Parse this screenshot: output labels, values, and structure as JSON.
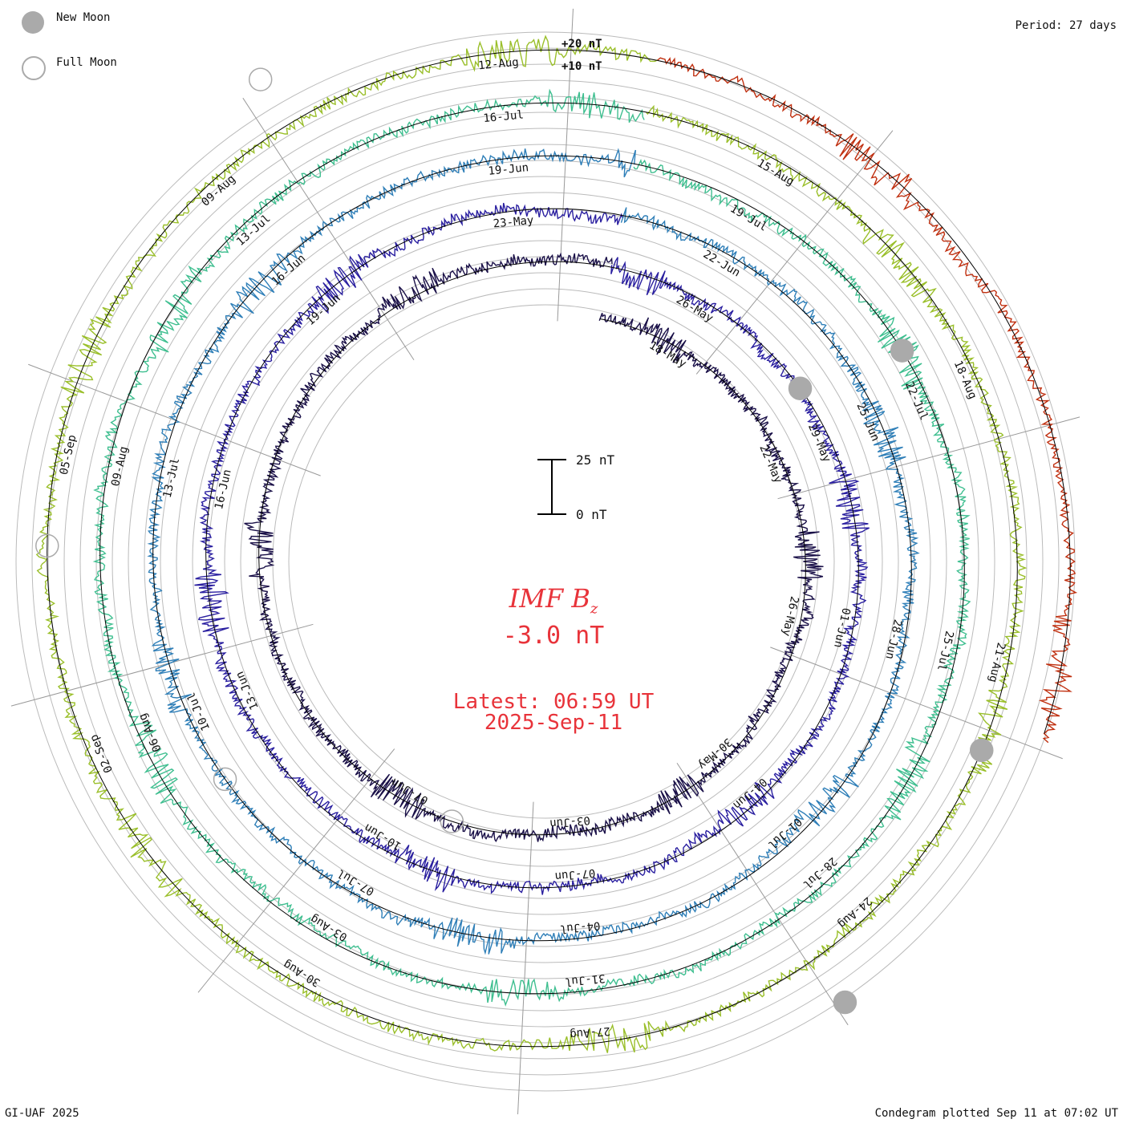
{
  "legend": {
    "new_moon": {
      "label": "New Moon",
      "color": "#aaaaaa"
    },
    "full_moon": {
      "label": "Full Moon",
      "color": "#aaaaaa"
    }
  },
  "period_label": "Period: 27 days",
  "footer": {
    "left": "GI-UAF 2025",
    "right": "Condegram plotted Sep 11 at 07:02 UT"
  },
  "scale": {
    "top_label": "+20 nT",
    "second_label": "+10 nT",
    "bar_top": "25 nT",
    "bar_bottom": "0 nT"
  },
  "center": {
    "title_main": "IMF B",
    "title_sub": "z",
    "value": "-3.0 nT",
    "latest": "Latest: 06:59 UT",
    "date": "2025-Sep-11"
  },
  "chart_data": {
    "type": "line",
    "title": "IMF Bz Condegram",
    "period_days": 27,
    "units": "nT",
    "ring_spacing_nT": 10,
    "latest_value": -3.0,
    "rotations": [
      {
        "name": "rotation-1",
        "start": "15-May",
        "color": "#1a1048",
        "date_labels": [
          "18-May",
          "22-May",
          "26-May",
          "30-May",
          "03-Jun",
          "07-Jun"
        ]
      },
      {
        "name": "rotation-2",
        "start": "26-May",
        "color": "#2a1fa0",
        "date_labels": [
          "26-May",
          "29-May",
          "01-Jun",
          "04-Jun",
          "07-Jun",
          "10-Jun",
          "13-Jun",
          "16-Jun",
          "19-Jun",
          "23-May"
        ]
      },
      {
        "name": "rotation-3",
        "start": "22-Jun",
        "color": "#2f7fb8",
        "date_labels": [
          "22-Jun",
          "25-Jun",
          "28-Jun",
          "01-Jul",
          "04-Jul",
          "07-Jul",
          "10-Jul",
          "13-Jul",
          "16-Jun",
          "19-Jun"
        ]
      },
      {
        "name": "rotation-4",
        "start": "19-Jul",
        "color": "#3fbf90",
        "date_labels": [
          "19-Jul",
          "22-Jul",
          "25-Jul",
          "28-Jul",
          "31-Jul",
          "03-Aug",
          "06-Aug",
          "09-Aug",
          "13-Jul",
          "16-Jul"
        ]
      },
      {
        "name": "rotation-5",
        "start": "15-Aug",
        "color": "#9abf2a",
        "date_labels": [
          "15-Aug",
          "18-Aug",
          "21-Aug",
          "24-Aug",
          "27-Aug",
          "30-Aug",
          "02-Sep",
          "05-Sep",
          "09-Aug",
          "12-Aug"
        ]
      },
      {
        "name": "rotation-6",
        "start": "11-Sep",
        "color": "#c03010",
        "date_labels": []
      }
    ]
  }
}
